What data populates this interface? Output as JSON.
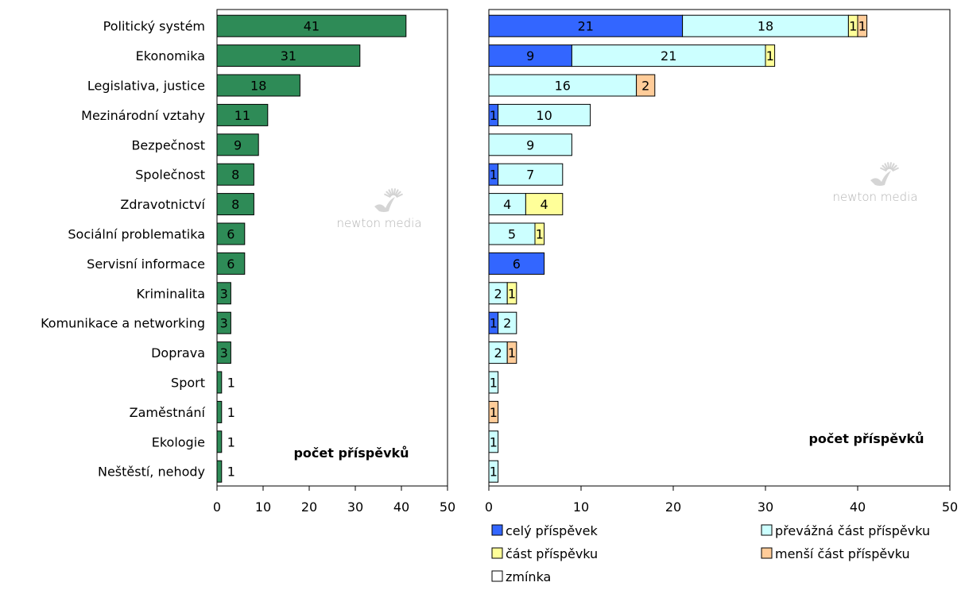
{
  "colors": {
    "left_bar": "#2e8b57",
    "cely": "#3366ff",
    "prevazna": "#ccffff",
    "cast": "#ffff99",
    "mensi": "#ffcc99",
    "zminka": "#ffffff",
    "watermark": "#b3b3b3"
  },
  "watermark": {
    "text": "newton media"
  },
  "chart_data": [
    {
      "type": "bar",
      "orientation": "horizontal",
      "categories": [
        "Politický systém",
        "Ekonomika",
        "Legislativa, justice",
        "Mezinárodní vztahy",
        "Bezpečnost",
        "Společnost",
        "Zdravotnictví",
        "Sociální problematika",
        "Servisní informace",
        "Kriminalita",
        "Komunikace a networking",
        "Doprava",
        "Sport",
        "Zaměstnání",
        "Ekologie",
        "Neštěstí, nehody"
      ],
      "values": [
        41,
        31,
        18,
        11,
        9,
        8,
        8,
        6,
        6,
        3,
        3,
        3,
        1,
        1,
        1,
        1
      ],
      "xlim": [
        0,
        50
      ],
      "xticks": [
        0,
        10,
        20,
        30,
        40,
        50
      ],
      "annotation": "počet příspěvků",
      "grid": false
    },
    {
      "type": "bar",
      "orientation": "horizontal",
      "stacked": true,
      "categories": [
        "Politický systém",
        "Ekonomika",
        "Legislativa, justice",
        "Mezinárodní vztahy",
        "Bezpečnost",
        "Společnost",
        "Zdravotnictví",
        "Sociální problematika",
        "Servisní informace",
        "Kriminalita",
        "Komunikace a networking",
        "Doprava",
        "Sport",
        "Zaměstnání",
        "Ekologie",
        "Neštěstí, nehody"
      ],
      "series": [
        {
          "name": "celý příspěvek",
          "color_key": "cely",
          "values": [
            21,
            9,
            0,
            1,
            0,
            1,
            0,
            0,
            6,
            0,
            1,
            0,
            0,
            0,
            0,
            0
          ]
        },
        {
          "name": "převážná část příspěvku",
          "color_key": "prevazna",
          "values": [
            18,
            21,
            16,
            10,
            9,
            7,
            4,
            5,
            0,
            2,
            2,
            2,
            1,
            0,
            1,
            1
          ]
        },
        {
          "name": "část příspěvku",
          "color_key": "cast",
          "values": [
            1,
            1,
            0,
            0,
            0,
            0,
            4,
            1,
            0,
            1,
            0,
            0,
            0,
            0,
            0,
            0
          ]
        },
        {
          "name": "menší část příspěvku",
          "color_key": "mensi",
          "values": [
            1,
            0,
            2,
            0,
            0,
            0,
            0,
            0,
            0,
            0,
            0,
            1,
            0,
            1,
            0,
            0
          ]
        },
        {
          "name": "zmínka",
          "color_key": "zminka",
          "values": [
            0,
            0,
            0,
            0,
            0,
            0,
            0,
            0,
            0,
            0,
            0,
            0,
            0,
            0,
            0,
            0
          ]
        }
      ],
      "xlim": [
        0,
        50
      ],
      "xticks": [
        0,
        10,
        20,
        30,
        40,
        50
      ],
      "annotation": "počet příspěvků",
      "legend_position": "bottom",
      "grid": false
    }
  ]
}
